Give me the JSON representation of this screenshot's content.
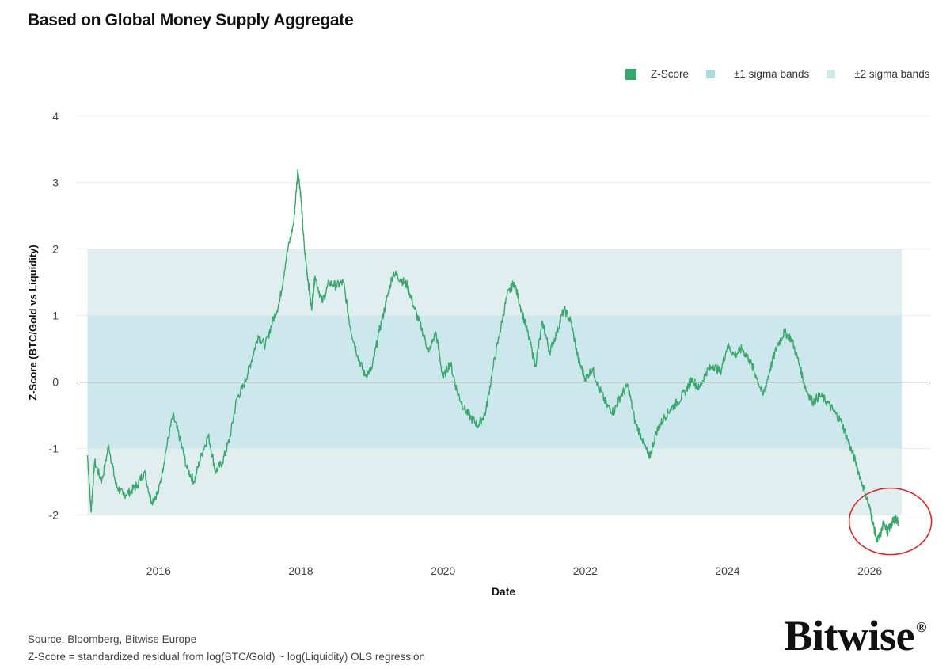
{
  "title": "Based on Global Money Supply Aggregate",
  "legend": {
    "zscore": "Z-Score",
    "sigma1": "±1 sigma bands",
    "sigma2": "±2 sigma bands"
  },
  "footer": {
    "source": "Source: Bloomberg, Bitwise Europe",
    "note": "Z-Score = standardized residual from log(BTC/Gold) ~ log(Liquidity) OLS regression"
  },
  "logo": {
    "text": "Bitwise",
    "mark": "®"
  },
  "colors": {
    "line": "#3aa76d",
    "sigma1": "#cde8ec",
    "sigma2": "#e0eeef",
    "grid": "#ececec",
    "zero": "#333333",
    "highlight": "#d62a2a",
    "legend_sigma1": "#a9dbe3",
    "legend_sigma2": "#cfe7e9"
  },
  "chart_data": {
    "type": "line",
    "xlabel": "Date",
    "ylabel": "Z-Score (BTC/Gold vs Liquidity)",
    "xlim": [
      2014.85,
      2026.85
    ],
    "ylim": [
      -2.65,
      4.2
    ],
    "x_ticks": [
      2016,
      2018,
      2020,
      2022,
      2024,
      2026
    ],
    "y_ticks": [
      4,
      3,
      2,
      1,
      0,
      -1,
      -2
    ],
    "y_tick_labels": [
      "4",
      "3",
      "2",
      "1",
      "0",
      "-1",
      "-2"
    ],
    "bands": [
      {
        "name": "±2 sigma bands",
        "from": -2,
        "to": 2,
        "x_start": 2015.0,
        "x_end": 2026.45
      },
      {
        "name": "±1 sigma bands",
        "from": -1,
        "to": 1,
        "x_start": 2015.0,
        "x_end": 2026.45
      }
    ],
    "zero_line": 0,
    "highlight_circle": {
      "x": 2026.2,
      "y": -2.05
    },
    "series": [
      {
        "name": "Z-Score",
        "x": [
          2015.0,
          2015.05,
          2015.1,
          2015.2,
          2015.3,
          2015.4,
          2015.5,
          2015.6,
          2015.7,
          2015.8,
          2015.9,
          2016.0,
          2016.1,
          2016.2,
          2016.3,
          2016.4,
          2016.5,
          2016.6,
          2016.7,
          2016.8,
          2016.9,
          2017.0,
          2017.1,
          2017.2,
          2017.3,
          2017.4,
          2017.5,
          2017.6,
          2017.7,
          2017.8,
          2017.9,
          2017.96,
          2018.0,
          2018.05,
          2018.1,
          2018.15,
          2018.2,
          2018.3,
          2018.4,
          2018.5,
          2018.6,
          2018.7,
          2018.8,
          2018.9,
          2019.0,
          2019.1,
          2019.2,
          2019.3,
          2019.4,
          2019.5,
          2019.6,
          2019.7,
          2019.8,
          2019.9,
          2020.0,
          2020.1,
          2020.2,
          2020.3,
          2020.4,
          2020.5,
          2020.6,
          2020.7,
          2020.8,
          2020.9,
          2021.0,
          2021.1,
          2021.2,
          2021.3,
          2021.4,
          2021.5,
          2021.6,
          2021.7,
          2021.8,
          2021.9,
          2022.0,
          2022.1,
          2022.2,
          2022.3,
          2022.4,
          2022.5,
          2022.6,
          2022.7,
          2022.8,
          2022.9,
          2023.0,
          2023.1,
          2023.2,
          2023.3,
          2023.4,
          2023.5,
          2023.6,
          2023.7,
          2023.8,
          2023.9,
          2024.0,
          2024.1,
          2024.2,
          2024.3,
          2024.4,
          2024.5,
          2024.6,
          2024.7,
          2024.8,
          2024.9,
          2025.0,
          2025.1,
          2025.2,
          2025.3,
          2025.4,
          2025.5,
          2025.6,
          2025.7,
          2025.8,
          2025.9,
          2026.0,
          2026.05,
          2026.1,
          2026.15,
          2026.2,
          2026.25,
          2026.3,
          2026.35,
          2026.4
        ],
        "values": [
          -1.1,
          -1.95,
          -1.2,
          -1.5,
          -0.95,
          -1.55,
          -1.7,
          -1.65,
          -1.55,
          -1.35,
          -1.8,
          -1.65,
          -1.05,
          -0.5,
          -0.85,
          -1.3,
          -1.5,
          -1.1,
          -0.8,
          -1.35,
          -1.2,
          -0.85,
          -0.25,
          -0.05,
          0.3,
          0.7,
          0.55,
          0.9,
          1.2,
          1.9,
          2.4,
          3.2,
          2.8,
          2.0,
          1.55,
          1.1,
          1.6,
          1.2,
          1.5,
          1.45,
          1.5,
          0.8,
          0.4,
          0.1,
          0.2,
          0.75,
          1.2,
          1.65,
          1.55,
          1.45,
          1.1,
          0.8,
          0.45,
          0.75,
          0.05,
          0.3,
          -0.15,
          -0.4,
          -0.55,
          -0.65,
          -0.45,
          0.2,
          0.75,
          1.3,
          1.5,
          1.1,
          0.7,
          0.25,
          0.9,
          0.45,
          0.75,
          1.1,
          0.9,
          0.35,
          0.05,
          0.2,
          -0.1,
          -0.35,
          -0.45,
          -0.2,
          -0.05,
          -0.6,
          -0.85,
          -1.15,
          -0.75,
          -0.55,
          -0.4,
          -0.3,
          -0.15,
          0.05,
          -0.1,
          0.15,
          0.25,
          0.15,
          0.55,
          0.4,
          0.5,
          0.35,
          0.1,
          -0.2,
          0.2,
          0.55,
          0.75,
          0.65,
          0.3,
          -0.1,
          -0.3,
          -0.2,
          -0.3,
          -0.45,
          -0.6,
          -0.9,
          -1.2,
          -1.55,
          -1.9,
          -2.15,
          -2.4,
          -2.3,
          -2.1,
          -2.25,
          -2.15,
          -2.05,
          -2.1
        ]
      }
    ]
  }
}
